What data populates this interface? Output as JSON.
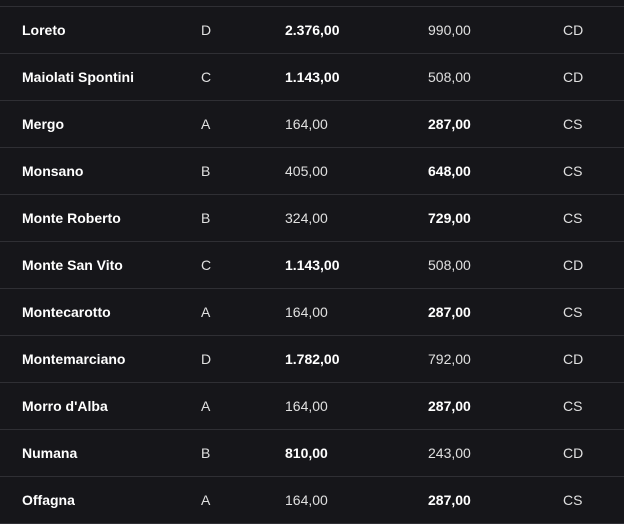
{
  "rows": [
    {
      "name": "Loreto",
      "category": "D",
      "value1": "2.376,00",
      "value2": "990,00",
      "type": "CD",
      "bold": "value1"
    },
    {
      "name": "Maiolati Spontini",
      "category": "C",
      "value1": "1.143,00",
      "value2": "508,00",
      "type": "CD",
      "bold": "value1"
    },
    {
      "name": "Mergo",
      "category": "A",
      "value1": "164,00",
      "value2": "287,00",
      "type": "CS",
      "bold": "value2"
    },
    {
      "name": "Monsano",
      "category": "B",
      "value1": "405,00",
      "value2": "648,00",
      "type": "CS",
      "bold": "value2"
    },
    {
      "name": "Monte Roberto",
      "category": "B",
      "value1": "324,00",
      "value2": "729,00",
      "type": "CS",
      "bold": "value2"
    },
    {
      "name": "Monte San Vito",
      "category": "C",
      "value1": "1.143,00",
      "value2": "508,00",
      "type": "CD",
      "bold": "value1"
    },
    {
      "name": "Montecarotto",
      "category": "A",
      "value1": "164,00",
      "value2": "287,00",
      "type": "CS",
      "bold": "value2"
    },
    {
      "name": "Montemarciano",
      "category": "D",
      "value1": "1.782,00",
      "value2": "792,00",
      "type": "CD",
      "bold": "value1"
    },
    {
      "name": "Morro d'Alba",
      "category": "A",
      "value1": "164,00",
      "value2": "287,00",
      "type": "CS",
      "bold": "value2"
    },
    {
      "name": "Numana",
      "category": "B",
      "value1": "810,00",
      "value2": "243,00",
      "type": "CD",
      "bold": "value1"
    },
    {
      "name": "Offagna",
      "category": "A",
      "value1": "164,00",
      "value2": "287,00",
      "type": "CS",
      "bold": "value2"
    }
  ]
}
